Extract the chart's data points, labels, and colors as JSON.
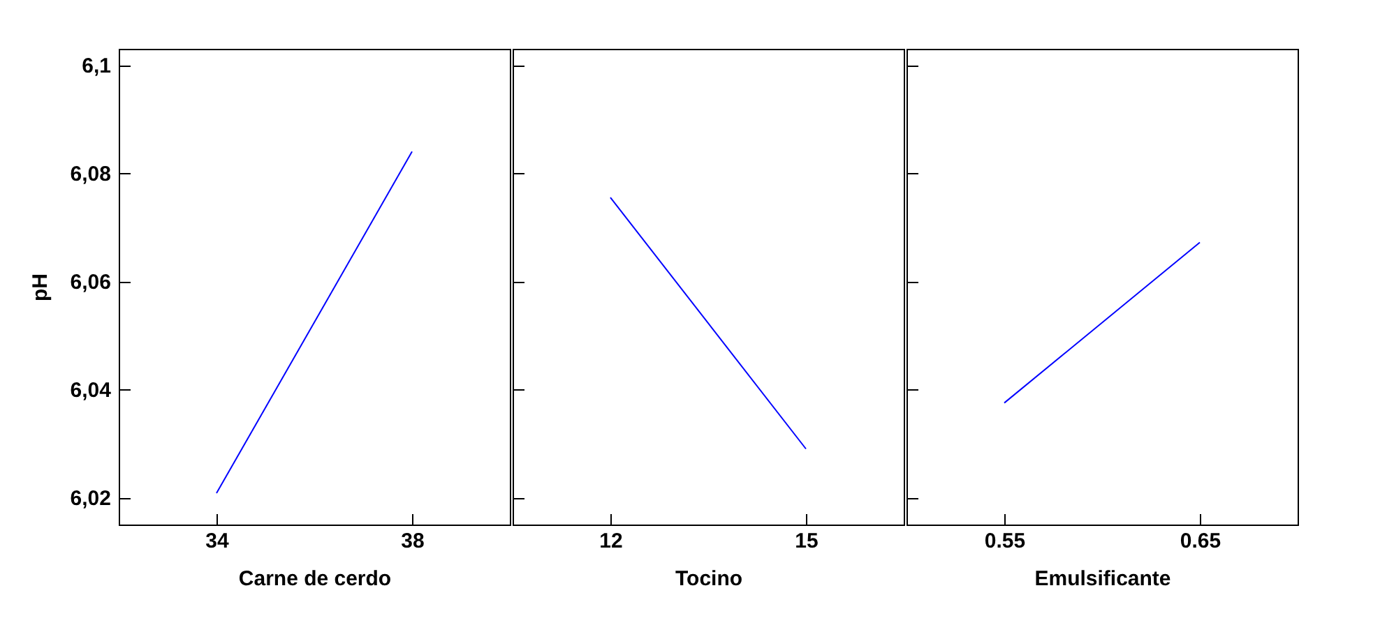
{
  "chart_data": [
    {
      "type": "line",
      "categories": [
        "34",
        "38"
      ],
      "xlabel": "Carne de cerdo",
      "ylabel": "pH",
      "series": [
        {
          "color": "#0000ff",
          "values": [
            6.0208,
            6.084
          ]
        }
      ],
      "ylim": [
        6.015,
        6.103
      ],
      "yticks": [
        {
          "value": 6.02,
          "label": "6,02"
        },
        {
          "value": 6.04,
          "label": "6,04"
        },
        {
          "value": 6.06,
          "label": "6,06"
        },
        {
          "value": 6.08,
          "label": "6,08"
        },
        {
          "value": 6.1,
          "label": "6,1"
        }
      ],
      "grid": false,
      "legend": false
    },
    {
      "type": "line",
      "categories": [
        "12",
        "15"
      ],
      "xlabel": "Tocino",
      "series": [
        {
          "color": "#0000ff",
          "values": [
            6.0755,
            6.029
          ]
        }
      ],
      "ylim": [
        6.015,
        6.103
      ],
      "yticks": [
        {
          "value": 6.02,
          "label": null
        },
        {
          "value": 6.04,
          "label": null
        },
        {
          "value": 6.06,
          "label": null
        },
        {
          "value": 6.08,
          "label": null
        },
        {
          "value": 6.1,
          "label": null
        }
      ],
      "tick_labels": "x",
      "grid": false,
      "legend": false
    },
    {
      "type": "line",
      "categories": [
        "0.55",
        "0.65"
      ],
      "xlabel": "Emulsificante",
      "series": [
        {
          "color": "#0000ff",
          "values": [
            6.0375,
            6.0672
          ]
        }
      ],
      "ylim": [
        6.015,
        6.103
      ],
      "yticks": [
        {
          "value": 6.02,
          "label": null
        },
        {
          "value": 6.04,
          "label": null
        },
        {
          "value": 6.06,
          "label": null
        },
        {
          "value": 6.08,
          "label": null
        },
        {
          "value": 6.1,
          "label": null
        }
      ],
      "tick_labels": "x",
      "grid": false,
      "legend": false
    }
  ]
}
